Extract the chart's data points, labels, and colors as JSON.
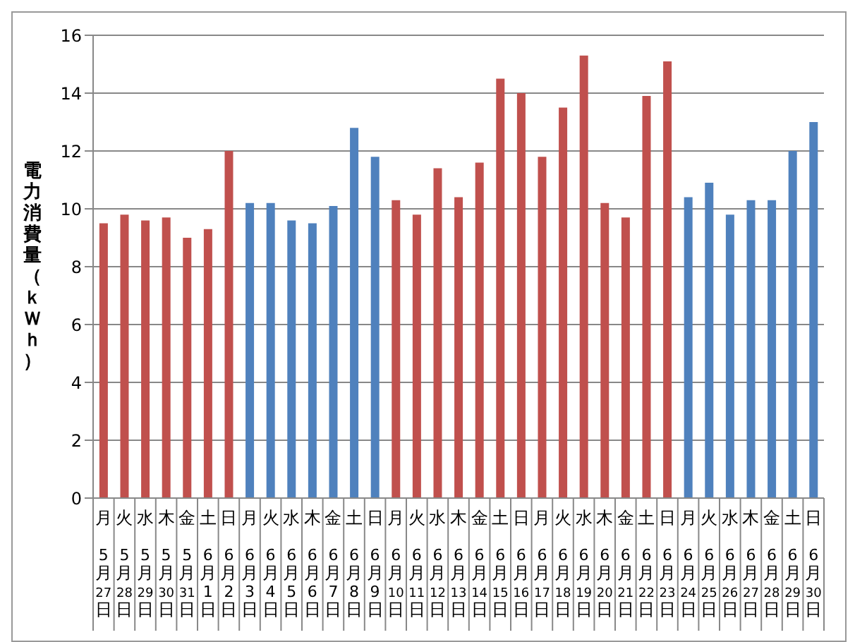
{
  "chart_data": {
    "type": "bar",
    "ylabel": "電力消費量（ｋＷｈ）",
    "categories": [
      "月 5月27日",
      "火 5月28日",
      "水 5月29日",
      "木 5月30日",
      "金 5月31日",
      "土 6月1日",
      "日 6月2日",
      "月 6月3日",
      "火 6月4日",
      "水 6月5日",
      "木 6月6日",
      "金 6月7日",
      "土 6月8日",
      "日 6月9日",
      "月 6月10日",
      "火 6月11日",
      "水 6月12日",
      "木 6月13日",
      "金 6月14日",
      "土 6月15日",
      "日 6月16日",
      "月 6月17日",
      "火 6月18日",
      "水 6月19日",
      "木 6月20日",
      "金 6月21日",
      "土 6月22日",
      "日 6月23日",
      "月 6月24日",
      "火 6月25日",
      "水 6月26日",
      "木 6月27日",
      "金 6月28日",
      "土 6月29日",
      "日 6月30日"
    ],
    "values": [
      9.5,
      9.8,
      9.6,
      9.7,
      9.0,
      9.3,
      12.0,
      10.2,
      10.2,
      9.6,
      9.5,
      10.1,
      12.8,
      11.8,
      10.3,
      9.8,
      11.4,
      10.4,
      11.6,
      14.5,
      14.0,
      11.8,
      13.5,
      15.3,
      10.2,
      9.7,
      13.9,
      15.1,
      10.4,
      10.9,
      9.8,
      10.3,
      10.3,
      12.0,
      13.0
    ],
    "colors": [
      "#c0504d",
      "#c0504d",
      "#c0504d",
      "#c0504d",
      "#c0504d",
      "#c0504d",
      "#c0504d",
      "#4f81bd",
      "#4f81bd",
      "#4f81bd",
      "#4f81bd",
      "#4f81bd",
      "#4f81bd",
      "#4f81bd",
      "#c0504d",
      "#c0504d",
      "#c0504d",
      "#c0504d",
      "#c0504d",
      "#c0504d",
      "#c0504d",
      "#c0504d",
      "#c0504d",
      "#c0504d",
      "#c0504d",
      "#c0504d",
      "#c0504d",
      "#c0504d",
      "#4f81bd",
      "#4f81bd",
      "#4f81bd",
      "#4f81bd",
      "#4f81bd",
      "#4f81bd",
      "#4f81bd"
    ],
    "ylim": [
      0,
      16
    ],
    "yticks": [
      0,
      2,
      4,
      6,
      8,
      10,
      12,
      14,
      16
    ],
    "grid": "y"
  }
}
